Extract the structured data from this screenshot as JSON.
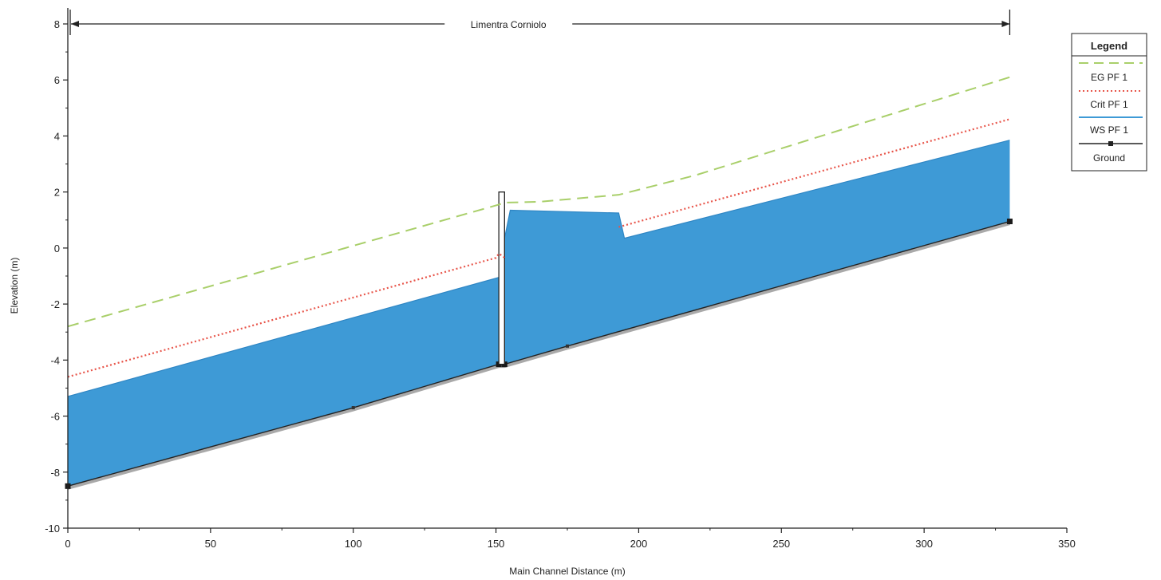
{
  "colors": {
    "ws_fill": "#3e9ad6",
    "ground": "#222222",
    "ground_shadow": "#a9a9a9",
    "eg_line": "#a9cf6a",
    "crit_line": "#e8554a",
    "axis": "#222222"
  },
  "chart_data": {
    "type": "line",
    "title": "",
    "reach_label": "Limentra Corniolo",
    "xlabel": "Main Channel Distance (m)",
    "ylabel": "Elevation (m)",
    "xlim": [
      0,
      350
    ],
    "ylim": [
      -10,
      8
    ],
    "x_ticks": [
      0,
      50,
      100,
      150,
      200,
      250,
      300,
      350
    ],
    "y_ticks": [
      -10,
      -8,
      -6,
      -4,
      -2,
      0,
      2,
      4,
      6,
      8
    ],
    "reach_extent": [
      0,
      330
    ],
    "grid": false,
    "legend_title": "Legend",
    "legend_position": "right",
    "series": [
      {
        "name": "EG  PF 1",
        "style": "dashed",
        "color": "#a9cf6a",
        "x": [
          0,
          151,
          153,
          165,
          193,
          220,
          330
        ],
        "y": [
          -2.8,
          1.55,
          1.62,
          1.65,
          1.9,
          2.6,
          6.1
        ]
      },
      {
        "name": "Crit  PF 1",
        "style": "dotted",
        "color": "#e8554a",
        "x": [
          0,
          150,
          151,
          152.5,
          153.5
        ],
        "y": [
          -4.6,
          -0.35,
          -0.2,
          -0.3,
          -0.4
        ]
      },
      {
        "name": "Crit  PF 1",
        "style": "dotted",
        "color": "#e8554a",
        "x": [
          193,
          330
        ],
        "y": [
          0.75,
          4.6
        ]
      },
      {
        "name": "WS  PF 1",
        "style": "filled",
        "color": "#3e9ad6",
        "x": [
          0,
          151,
          153,
          155,
          193,
          195,
          330
        ],
        "y": [
          -5.3,
          -1.05,
          0.35,
          1.35,
          1.25,
          0.35,
          3.85
        ]
      },
      {
        "name": "Ground",
        "style": "solid",
        "color": "#222222",
        "x": [
          0,
          100,
          151,
          153,
          175,
          330
        ],
        "y": [
          -8.5,
          -5.7,
          -4.15,
          -4.15,
          -3.5,
          0.95
        ]
      }
    ],
    "ground_points": [
      {
        "x": 0,
        "y": -8.5
      },
      {
        "x": 151,
        "y": -4.15
      },
      {
        "x": 153,
        "y": -4.15
      },
      {
        "x": 330,
        "y": 0.95
      }
    ],
    "structure": {
      "x_start": 151,
      "x_end": 153,
      "top": 2.0,
      "bottom": -4.15
    }
  }
}
